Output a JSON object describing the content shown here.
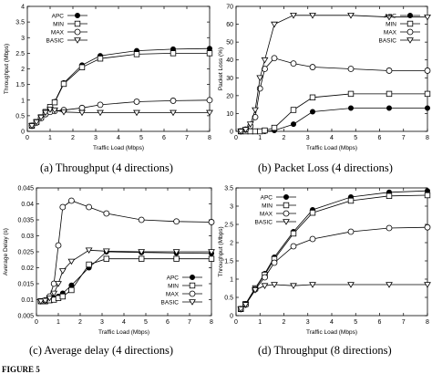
{
  "figure_label": "FIGURE 5",
  "chart_data": [
    {
      "type": "line",
      "caption": "(a) Throughput (4 directions)",
      "xlabel": "Traffic Load (Mbps)",
      "ylabel": "Throughput (Mbps)",
      "xlim": [
        0,
        8
      ],
      "ylim": [
        0,
        4
      ],
      "xticks": [
        0,
        1,
        2,
        3,
        4,
        5,
        6,
        7,
        8
      ],
      "yticks": [
        0,
        0.5,
        1,
        1.5,
        2,
        2.5,
        3,
        3.5,
        4
      ],
      "legend_position": "top-left",
      "series": [
        {
          "name": "APC",
          "marker": "filled-circle",
          "x": [
            0.2,
            0.4,
            0.6,
            0.8,
            1,
            1.2,
            1.6,
            2.4,
            3.2,
            4.8,
            6.4,
            8
          ],
          "y": [
            0.18,
            0.3,
            0.45,
            0.62,
            0.78,
            0.95,
            1.55,
            2.12,
            2.42,
            2.58,
            2.63,
            2.65
          ]
        },
        {
          "name": "MIN",
          "marker": "square",
          "x": [
            0.2,
            0.4,
            0.6,
            0.8,
            1,
            1.2,
            1.6,
            2.4,
            3.2,
            4.8,
            6.4,
            8
          ],
          "y": [
            0.18,
            0.3,
            0.45,
            0.62,
            0.78,
            0.93,
            1.52,
            2.05,
            2.33,
            2.47,
            2.5,
            2.5
          ]
        },
        {
          "name": "MAX",
          "marker": "circle",
          "x": [
            0.2,
            0.4,
            0.6,
            0.8,
            1,
            1.2,
            1.6,
            2.4,
            3.2,
            4.8,
            6.4,
            8
          ],
          "y": [
            0.18,
            0.28,
            0.42,
            0.55,
            0.62,
            0.65,
            0.68,
            0.75,
            0.85,
            0.95,
            0.98,
            1.0
          ]
        },
        {
          "name": "BASIC",
          "marker": "triangle-down",
          "x": [
            0.2,
            0.4,
            0.6,
            0.8,
            1,
            1.2,
            1.6,
            2.4,
            3.2,
            4.8,
            6.4,
            8
          ],
          "y": [
            0.18,
            0.3,
            0.45,
            0.6,
            0.7,
            0.68,
            0.62,
            0.6,
            0.6,
            0.6,
            0.6,
            0.6
          ]
        }
      ]
    },
    {
      "type": "line",
      "caption": "(b) Packet Loss (4 directions)",
      "xlabel": "Traffic Load (Mbps)",
      "ylabel": "Packet Loss (%)",
      "xlim": [
        0,
        8
      ],
      "ylim": [
        0,
        70
      ],
      "xticks": [
        0,
        1,
        2,
        3,
        4,
        5,
        6,
        7,
        8
      ],
      "yticks": [
        0,
        10,
        20,
        30,
        40,
        50,
        60,
        70
      ],
      "legend_position": "top-right",
      "series": [
        {
          "name": "APC",
          "marker": "filled-circle",
          "x": [
            0.2,
            0.4,
            0.6,
            0.8,
            1,
            1.2,
            1.6,
            2.4,
            3.2,
            4.8,
            6.4,
            8
          ],
          "y": [
            0,
            0,
            0,
            0,
            0,
            0,
            0.5,
            4,
            11,
            13,
            13,
            13
          ]
        },
        {
          "name": "MIN",
          "marker": "square",
          "x": [
            0.2,
            0.4,
            0.6,
            0.8,
            1,
            1.2,
            1.6,
            2.4,
            3.2,
            4.8,
            6.4,
            8
          ],
          "y": [
            0,
            0,
            0,
            0,
            0,
            0.5,
            2,
            12,
            19,
            21,
            21,
            21
          ]
        },
        {
          "name": "MAX",
          "marker": "circle",
          "x": [
            0.2,
            0.4,
            0.6,
            0.8,
            1,
            1.2,
            1.6,
            2.4,
            3.2,
            4.8,
            6.4,
            8
          ],
          "y": [
            0,
            1,
            3,
            8,
            24,
            35,
            41,
            38,
            36,
            35,
            34,
            34
          ]
        },
        {
          "name": "BASIC",
          "marker": "triangle-down",
          "x": [
            0.2,
            0.4,
            0.6,
            0.8,
            1,
            1.2,
            1.6,
            2.4,
            3.2,
            4.8,
            6.4,
            8
          ],
          "y": [
            0,
            1,
            4,
            12,
            30,
            40,
            60,
            65,
            65,
            65,
            64,
            64
          ]
        }
      ]
    },
    {
      "type": "line",
      "caption": "(c) Average delay (4 directions)",
      "xlabel": "Traffic Load (Mbps)",
      "ylabel": "Average Delay (s)",
      "xlim": [
        0,
        8
      ],
      "ylim": [
        0.005,
        0.045
      ],
      "xticks": [
        0,
        1,
        2,
        3,
        4,
        5,
        6,
        7,
        8
      ],
      "yticks": [
        0.005,
        0.01,
        0.015,
        0.02,
        0.025,
        0.03,
        0.035,
        0.04,
        0.045
      ],
      "legend_position": "bottom-right",
      "series": [
        {
          "name": "APC",
          "marker": "filled-circle",
          "x": [
            0.2,
            0.4,
            0.6,
            0.8,
            1,
            1.2,
            1.6,
            2.4,
            3.2,
            4.8,
            6.4,
            8
          ],
          "y": [
            0.0095,
            0.0095,
            0.01,
            0.0105,
            0.011,
            0.012,
            0.0145,
            0.02,
            0.025,
            0.0248,
            0.0246,
            0.0245
          ]
        },
        {
          "name": "MIN",
          "marker": "square",
          "x": [
            0.2,
            0.4,
            0.6,
            0.8,
            1,
            1.2,
            1.6,
            2.4,
            3.2,
            4.8,
            6.4,
            8
          ],
          "y": [
            0.0095,
            0.0095,
            0.0098,
            0.01,
            0.0105,
            0.011,
            0.013,
            0.021,
            0.0228,
            0.0228,
            0.0228,
            0.0228
          ]
        },
        {
          "name": "MAX",
          "marker": "circle",
          "x": [
            0.2,
            0.4,
            0.6,
            0.8,
            1,
            1.2,
            1.6,
            2.4,
            3.2,
            4.8,
            6.4,
            8
          ],
          "y": [
            0.0095,
            0.0098,
            0.011,
            0.015,
            0.027,
            0.039,
            0.041,
            0.039,
            0.037,
            0.035,
            0.0345,
            0.0343
          ]
        },
        {
          "name": "BASIC",
          "marker": "triangle-down",
          "x": [
            0.2,
            0.4,
            0.6,
            0.8,
            1,
            1.2,
            1.6,
            2.4,
            3.2,
            4.8,
            6.4,
            8
          ],
          "y": [
            0.0095,
            0.0097,
            0.0105,
            0.012,
            0.015,
            0.019,
            0.022,
            0.0255,
            0.0252,
            0.025,
            0.025,
            0.025
          ]
        }
      ]
    },
    {
      "type": "line",
      "caption": "(d) Throughput (8 directions)",
      "xlabel": "Traffic Load (Mbps)",
      "ylabel": "Throughput (Mbps)",
      "xlim": [
        0,
        8
      ],
      "ylim": [
        0,
        3.5
      ],
      "xticks": [
        0,
        1,
        2,
        3,
        4,
        5,
        6,
        7,
        8
      ],
      "yticks": [
        0,
        0.5,
        1,
        1.5,
        2,
        2.5,
        3,
        3.5
      ],
      "legend_position": "top-left",
      "series": [
        {
          "name": "APC",
          "marker": "filled-circle",
          "x": [
            0.2,
            0.4,
            0.8,
            1.2,
            1.6,
            2.4,
            3.2,
            4.8,
            6.4,
            8
          ],
          "y": [
            0.18,
            0.32,
            0.75,
            1.15,
            1.6,
            2.3,
            2.9,
            3.25,
            3.38,
            3.42
          ]
        },
        {
          "name": "MIN",
          "marker": "square",
          "x": [
            0.2,
            0.4,
            0.8,
            1.2,
            1.6,
            2.4,
            3.2,
            4.8,
            6.4,
            8
          ],
          "y": [
            0.18,
            0.32,
            0.75,
            1.12,
            1.55,
            2.25,
            2.82,
            3.15,
            3.28,
            3.3
          ]
        },
        {
          "name": "MAX",
          "marker": "circle",
          "x": [
            0.2,
            0.4,
            0.8,
            1.2,
            1.6,
            2.4,
            3.2,
            4.8,
            6.4,
            8
          ],
          "y": [
            0.18,
            0.3,
            0.72,
            1.05,
            1.45,
            1.9,
            2.1,
            2.3,
            2.4,
            2.42
          ]
        },
        {
          "name": "BASIC",
          "marker": "triangle-down",
          "x": [
            0.2,
            0.4,
            0.8,
            1.2,
            1.6,
            2.4,
            3.2,
            4.8,
            6.4,
            8
          ],
          "y": [
            0.18,
            0.3,
            0.7,
            0.82,
            0.85,
            0.82,
            0.85,
            0.85,
            0.85,
            0.85
          ]
        }
      ]
    }
  ]
}
